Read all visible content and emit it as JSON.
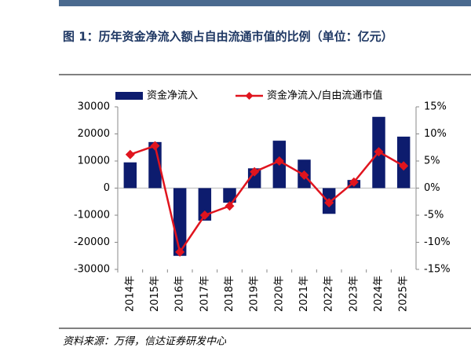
{
  "chart_data": {
    "type": "bar_line",
    "title": "图 1：历年资金净流入额占自由流通市值的比例（单位：亿元）",
    "source": "资料来源：万得，信达证券研发中心",
    "categories": [
      "2014年",
      "2015年",
      "2016年",
      "2017年",
      "2018年",
      "2019年",
      "2020年",
      "2021年",
      "2022年",
      "2023年",
      "2024年",
      "2025年"
    ],
    "series": [
      {
        "name": "资金净流入",
        "color": "#0d1c6e",
        "kind": "bar",
        "axis": "y",
        "values": [
          9500,
          17000,
          -25000,
          -12000,
          -5400,
          7300,
          17500,
          10500,
          -9500,
          3000,
          26300,
          19000
        ]
      },
      {
        "name": "资金净流入/自由流通市值",
        "color": "#e0141e",
        "kind": "line",
        "axis": "y2",
        "values": [
          6.2,
          7.8,
          -11.8,
          -5,
          -3.3,
          3,
          5,
          2.4,
          -2.7,
          1.1,
          6.7,
          4.1
        ]
      }
    ],
    "ylim": [
      -30000,
      30000
    ],
    "yticks": [
      -30000,
      -20000,
      -10000,
      0,
      10000,
      20000,
      30000
    ],
    "y2lim": [
      -15,
      15
    ],
    "y2ticks": [
      {
        "value": -15,
        "label": "-15%"
      },
      {
        "value": -10,
        "label": "-10%"
      },
      {
        "value": -5,
        "label": "-5%"
      },
      {
        "value": 0,
        "label": "0%"
      },
      {
        "value": 5,
        "label": "5%"
      },
      {
        "value": 10,
        "label": "10%"
      },
      {
        "value": 15,
        "label": "15%"
      }
    ]
  }
}
